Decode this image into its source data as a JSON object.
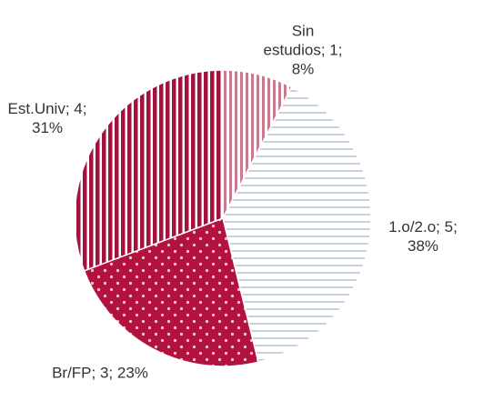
{
  "chart_data": {
    "type": "pie",
    "values": [
      1,
      5,
      3,
      4
    ],
    "value_labels": [
      "Sin estudios; 1; 8%",
      "1.o/2.o; 5; 38%",
      "Br/FP; 3; 23%",
      "Est.Univ; 4; 31%"
    ],
    "colors": [
      "#c77b8e",
      "#c9d1dc",
      "#b3123f",
      "#a3123f"
    ]
  }
}
